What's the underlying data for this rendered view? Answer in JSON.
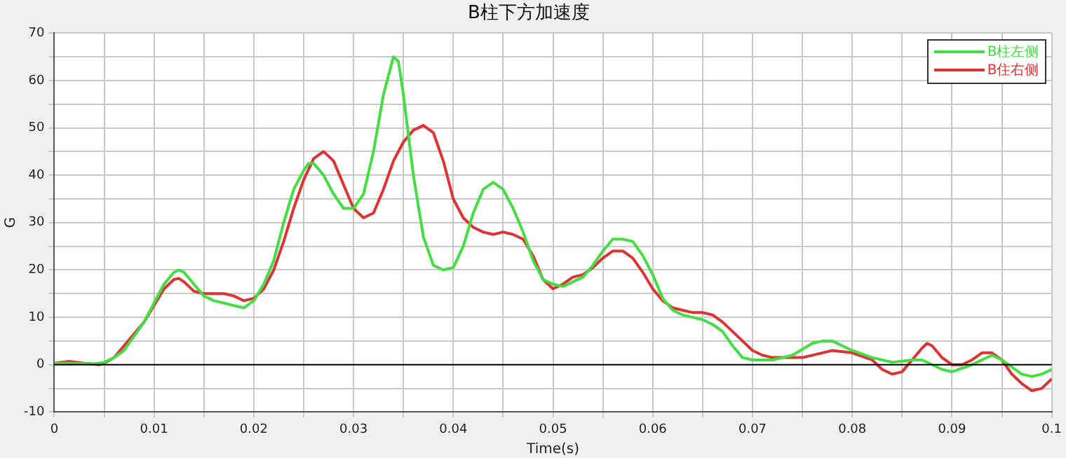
{
  "chart_data": {
    "type": "line",
    "title": "B柱下方加速度",
    "xlabel": "Time(s)",
    "ylabel": "G",
    "xlim": [
      0,
      0.1
    ],
    "xticks": [
      0,
      {
        "value": 0.005,
        "label": null
      },
      0.01,
      {
        "value": 0.015,
        "label": null
      },
      0.02,
      {
        "value": 0.025,
        "label": null
      },
      0.03,
      {
        "value": 0.035,
        "label": null
      },
      0.04,
      {
        "value": 0.045,
        "label": null
      },
      0.05,
      {
        "value": 0.055,
        "label": null
      },
      0.06,
      {
        "value": 0.065,
        "label": null
      },
      0.07,
      {
        "value": 0.075,
        "label": null
      },
      0.08,
      {
        "value": 0.085,
        "label": null
      },
      0.09,
      {
        "value": 0.095,
        "label": null
      },
      0.1
    ],
    "ylim": [
      -10,
      70
    ],
    "yticks": [
      -10,
      {
        "value": -5,
        "label": null
      },
      0,
      {
        "value": 5,
        "label": null
      },
      10,
      {
        "value": 15,
        "label": null
      },
      20,
      {
        "value": 25,
        "label": null
      },
      30,
      {
        "value": 35,
        "label": null
      },
      40,
      {
        "value": 45,
        "label": null
      },
      50,
      {
        "value": 55,
        "label": null
      },
      60,
      {
        "value": 65,
        "label": null
      },
      70
    ],
    "grid": true,
    "legend": "top right",
    "marker": "none",
    "line_style": "solid",
    "ref_lines": [
      {
        "axis": "y",
        "value": 0,
        "color": "#000000"
      }
    ],
    "series": [
      {
        "name": "B柱左侧",
        "color": "#44dd44",
        "x": [
          0,
          0.002,
          0.004,
          0.005,
          0.006,
          0.007,
          0.008,
          0.009,
          0.01,
          0.011,
          0.012,
          0.0125,
          0.013,
          0.014,
          0.015,
          0.016,
          0.017,
          0.018,
          0.019,
          0.02,
          0.021,
          0.022,
          0.023,
          0.024,
          0.025,
          0.0255,
          0.026,
          0.027,
          0.028,
          0.029,
          0.03,
          0.031,
          0.032,
          0.033,
          0.034,
          0.0345,
          0.035,
          0.036,
          0.037,
          0.038,
          0.039,
          0.04,
          0.041,
          0.042,
          0.043,
          0.044,
          0.045,
          0.046,
          0.047,
          0.048,
          0.049,
          0.05,
          0.051,
          0.052,
          0.053,
          0.054,
          0.055,
          0.056,
          0.057,
          0.058,
          0.059,
          0.06,
          0.061,
          0.062,
          0.063,
          0.064,
          0.065,
          0.066,
          0.067,
          0.068,
          0.069,
          0.07,
          0.072,
          0.074,
          0.076,
          0.077,
          0.078,
          0.08,
          0.082,
          0.084,
          0.086,
          0.087,
          0.088,
          0.089,
          0.09,
          0.092,
          0.094,
          0.095,
          0.097,
          0.098,
          0.099,
          0.1
        ],
        "values": [
          0.3,
          0.3,
          0.2,
          0.5,
          1.5,
          3,
          6,
          9,
          13,
          17,
          19.5,
          20,
          19.5,
          17,
          14.5,
          13.5,
          13,
          12.5,
          12,
          13.5,
          17,
          22,
          30,
          37,
          41,
          42.5,
          42.5,
          40,
          36,
          33,
          33,
          36,
          45,
          57,
          65,
          64,
          57,
          40,
          27,
          21,
          20,
          20.5,
          25,
          32,
          37,
          38.5,
          37,
          33,
          28,
          22,
          18,
          17,
          16.5,
          17.5,
          18.5,
          21,
          24,
          26.5,
          26.5,
          26,
          23,
          19,
          14,
          11.5,
          10.5,
          10,
          9.5,
          8.5,
          7,
          4,
          1.5,
          1,
          1,
          2,
          4.5,
          5,
          5,
          3,
          1.5,
          0.5,
          1,
          1,
          0,
          -1,
          -1.5,
          0,
          2,
          1,
          -2,
          -2.5,
          -2,
          -1
        ]
      },
      {
        "name": "B住右侧",
        "color": "#dd3333",
        "x": [
          0,
          0.0015,
          0.003,
          0.0045,
          0.005,
          0.006,
          0.009,
          0.01,
          0.011,
          0.012,
          0.0125,
          0.013,
          0.014,
          0.015,
          0.016,
          0.017,
          0.018,
          0.019,
          0.02,
          0.021,
          0.022,
          0.023,
          0.024,
          0.025,
          0.026,
          0.027,
          0.028,
          0.029,
          0.03,
          0.031,
          0.032,
          0.033,
          0.034,
          0.035,
          0.036,
          0.037,
          0.038,
          0.039,
          0.04,
          0.041,
          0.042,
          0.043,
          0.044,
          0.045,
          0.046,
          0.047,
          0.048,
          0.049,
          0.05,
          0.051,
          0.052,
          0.053,
          0.054,
          0.055,
          0.056,
          0.057,
          0.058,
          0.059,
          0.06,
          0.061,
          0.062,
          0.063,
          0.064,
          0.065,
          0.066,
          0.067,
          0.068,
          0.069,
          0.07,
          0.071,
          0.072,
          0.073,
          0.075,
          0.077,
          0.078,
          0.08,
          0.082,
          0.083,
          0.084,
          0.085,
          0.086,
          0.087,
          0.0875,
          0.088,
          0.089,
          0.09,
          0.091,
          0.092,
          0.093,
          0.094,
          0.095,
          0.096,
          0.097,
          0.098,
          0.099,
          0.1
        ],
        "values": [
          0.3,
          0.7,
          0.3,
          0,
          0.3,
          1.5,
          9,
          12.5,
          16,
          18,
          18.2,
          17.5,
          15.5,
          15,
          15,
          15,
          14.5,
          13.5,
          14,
          16,
          20,
          26,
          33,
          39,
          43.5,
          45,
          43,
          38,
          33,
          31,
          32,
          37,
          43,
          47,
          49.5,
          50.5,
          49,
          43,
          35,
          31,
          29,
          28,
          27.5,
          28,
          27.5,
          26.5,
          23,
          18,
          16,
          17,
          18.5,
          19,
          20.5,
          22.5,
          24,
          24,
          22.5,
          19.5,
          16,
          13.5,
          12,
          11.5,
          11,
          11,
          10.5,
          9,
          7,
          5,
          3,
          2,
          1.5,
          1.5,
          1.5,
          2.5,
          3,
          2.5,
          1,
          -1,
          -2,
          -1.5,
          1,
          3.5,
          4.5,
          4,
          1.5,
          0,
          0,
          1,
          2.5,
          2.5,
          1,
          -2,
          -4,
          -5.5,
          -5,
          -3
        ]
      }
    ]
  }
}
